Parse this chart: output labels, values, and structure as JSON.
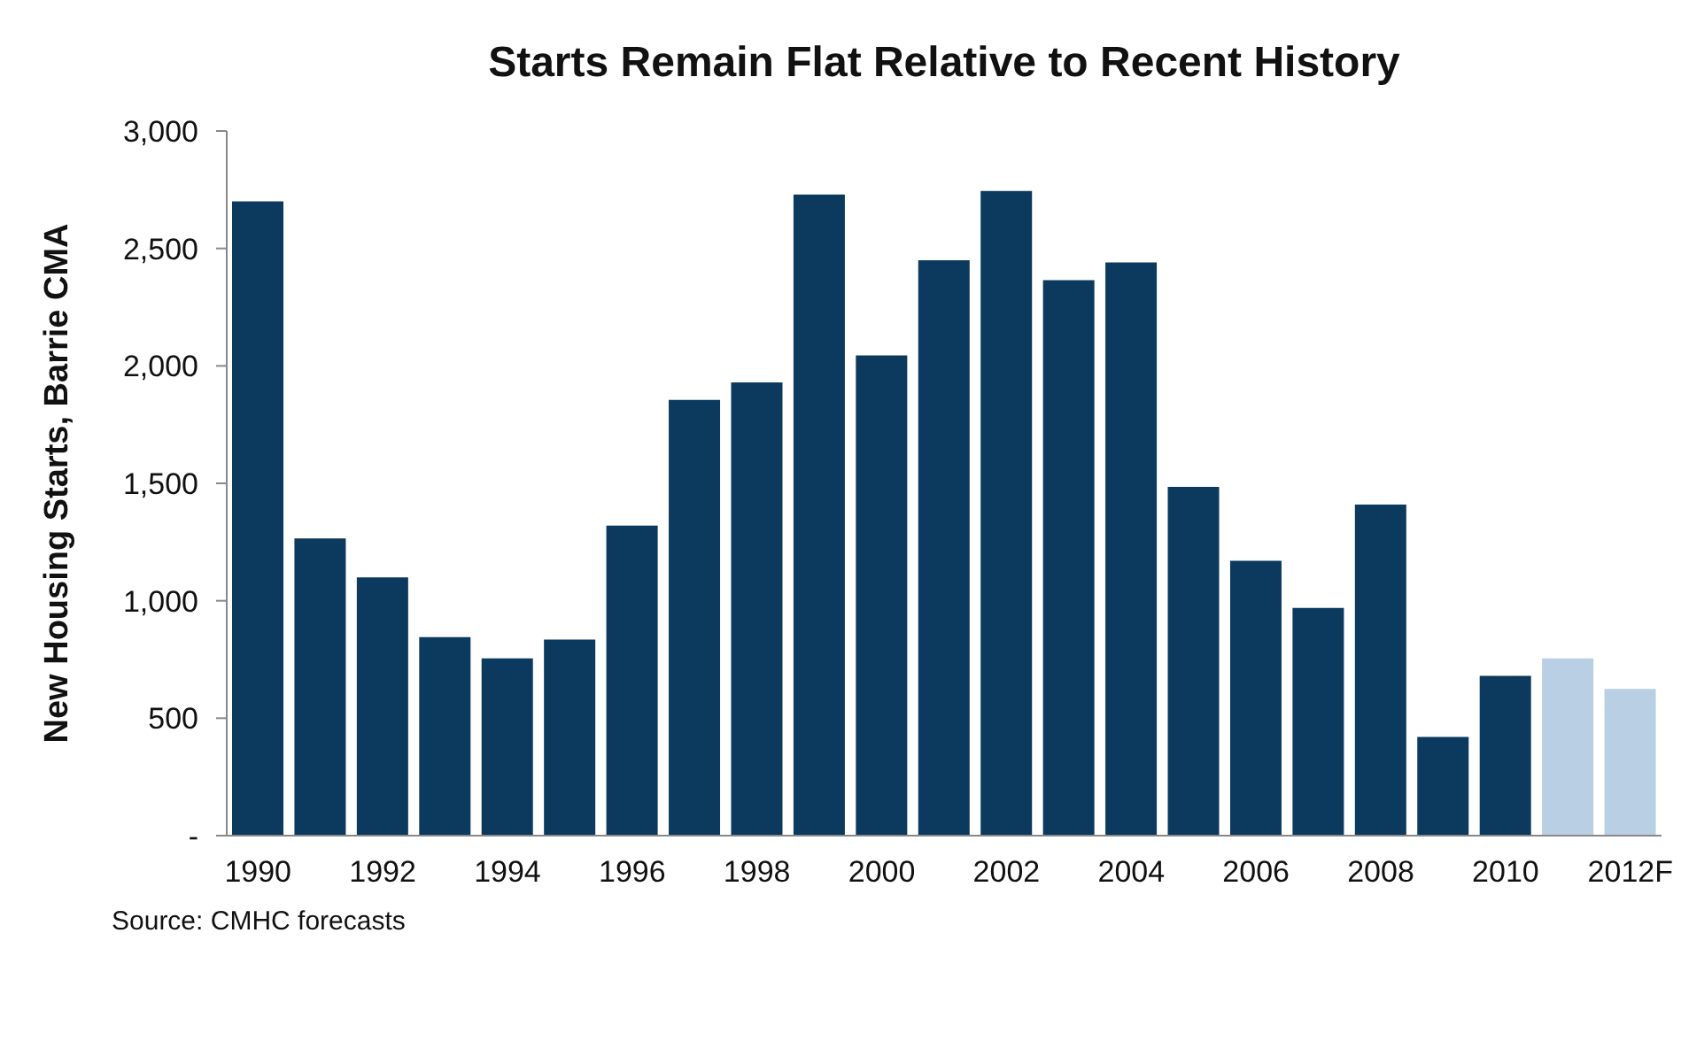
{
  "chart_data": {
    "type": "bar",
    "title": "Starts Remain Flat Relative to Recent History",
    "ylabel": "New Housing Starts, Barrie CMA",
    "categories": [
      "1990",
      null,
      "1992",
      null,
      "1994",
      null,
      "1996",
      null,
      "1998",
      null,
      "2000",
      null,
      "2002",
      null,
      "2004",
      null,
      "2006",
      null,
      "2008",
      null,
      "2010",
      null,
      "2012F"
    ],
    "values": [
      2700,
      1265,
      1100,
      845,
      755,
      835,
      1320,
      1855,
      1930,
      2730,
      2045,
      2450,
      2745,
      2365,
      2440,
      1485,
      1170,
      970,
      1410,
      420,
      680,
      755,
      625
    ],
    "colors": [
      "#0b3a5e",
      "#0b3a5e",
      "#0b3a5e",
      "#0b3a5e",
      "#0b3a5e",
      "#0b3a5e",
      "#0b3a5e",
      "#0b3a5e",
      "#0b3a5e",
      "#0b3a5e",
      "#0b3a5e",
      "#0b3a5e",
      "#0b3a5e",
      "#0b3a5e",
      "#0b3a5e",
      "#0b3a5e",
      "#0b3a5e",
      "#0b3a5e",
      "#0b3a5e",
      "#0b3a5e",
      "#0b3a5e",
      "#b9cfe3",
      "#b9cfe3"
    ],
    "ylim": [
      0,
      3000
    ],
    "yticks": [
      {
        "value": 0,
        "label": "-"
      },
      500,
      {
        "value": 1000,
        "label": "1,000"
      },
      {
        "value": 1500,
        "label": "1,500"
      },
      {
        "value": 2000,
        "label": "2,000"
      },
      {
        "value": 2500,
        "label": "2,500"
      },
      {
        "value": 3000,
        "label": "3,000"
      }
    ],
    "grid": false,
    "annotations": [
      "Source: CMHC forecasts"
    ]
  }
}
